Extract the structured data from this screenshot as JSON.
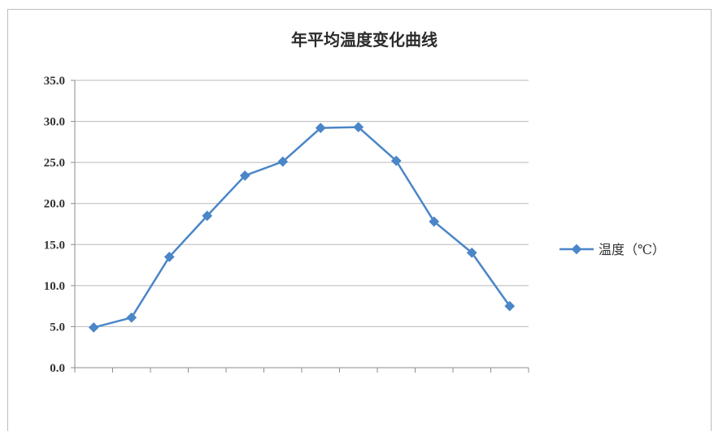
{
  "chart_data": {
    "type": "line",
    "title": "年平均温度变化曲线",
    "xlabel": "",
    "ylabel": "",
    "x": [
      1,
      2,
      3,
      4,
      5,
      6,
      7,
      8,
      9,
      10,
      11,
      12
    ],
    "ylim": [
      0,
      35
    ],
    "yticks": [
      "0.0",
      "5.0",
      "10.0",
      "15.0",
      "20.0",
      "25.0",
      "30.0",
      "35.0"
    ],
    "grid": true,
    "legend": "right",
    "series": [
      {
        "name": "温度（℃）",
        "color": "#4a86c8",
        "values": [
          4.9,
          6.1,
          13.5,
          18.5,
          23.4,
          25.1,
          29.2,
          29.3,
          25.2,
          17.8,
          14.0,
          7.5
        ]
      }
    ]
  }
}
